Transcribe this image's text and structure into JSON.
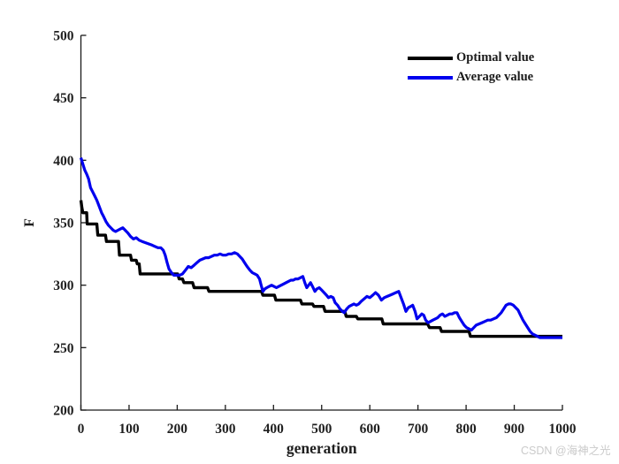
{
  "watermark": "CSDN @海神之光",
  "colors": {
    "axis": "#1a1a1a",
    "tick_label": "#1f1f1f",
    "background": "#ffffff",
    "watermark": "#cbcbcb"
  },
  "chart_data": {
    "type": "line",
    "title": "",
    "xlabel": "generation",
    "ylabel": "F",
    "xlim": [
      0,
      1000
    ],
    "ylim": [
      200,
      500
    ],
    "x_ticks": [
      0,
      100,
      200,
      300,
      400,
      500,
      600,
      700,
      800,
      900,
      1000
    ],
    "y_ticks": [
      200,
      250,
      300,
      350,
      400,
      450,
      500
    ],
    "grid": false,
    "legend_position": "top-right-inside",
    "legend_box": false,
    "series": [
      {
        "name": "Optimal value",
        "color": "#000000",
        "line_width": 3.4,
        "points": [
          [
            0,
            368
          ],
          [
            2,
            362
          ],
          [
            4,
            358
          ],
          [
            12,
            358
          ],
          [
            13,
            349
          ],
          [
            33,
            349
          ],
          [
            35,
            340
          ],
          [
            51,
            340
          ],
          [
            53,
            335
          ],
          [
            78,
            335
          ],
          [
            80,
            324
          ],
          [
            103,
            324
          ],
          [
            105,
            320
          ],
          [
            115,
            320
          ],
          [
            117,
            317
          ],
          [
            121,
            317
          ],
          [
            123,
            309
          ],
          [
            201,
            309
          ],
          [
            204,
            305
          ],
          [
            211,
            305
          ],
          [
            214,
            302
          ],
          [
            232,
            302
          ],
          [
            235,
            298
          ],
          [
            263,
            298
          ],
          [
            266,
            295
          ],
          [
            375,
            295
          ],
          [
            378,
            292
          ],
          [
            402,
            292
          ],
          [
            405,
            288
          ],
          [
            456,
            288
          ],
          [
            459,
            285
          ],
          [
            481,
            285
          ],
          [
            484,
            283
          ],
          [
            504,
            283
          ],
          [
            507,
            279
          ],
          [
            548,
            279
          ],
          [
            551,
            275
          ],
          [
            572,
            275
          ],
          [
            575,
            273
          ],
          [
            625,
            273
          ],
          [
            628,
            269
          ],
          [
            720,
            269
          ],
          [
            724,
            266
          ],
          [
            746,
            266
          ],
          [
            749,
            263
          ],
          [
            806,
            263
          ],
          [
            809,
            259
          ],
          [
            1000,
            259
          ]
        ]
      },
      {
        "name": "Average value",
        "color": "#0000ee",
        "line_width": 3.2,
        "points": [
          [
            0,
            402
          ],
          [
            4,
            397
          ],
          [
            8,
            392
          ],
          [
            12,
            389
          ],
          [
            16,
            385
          ],
          [
            20,
            378
          ],
          [
            24,
            375
          ],
          [
            28,
            372
          ],
          [
            33,
            368
          ],
          [
            38,
            363
          ],
          [
            43,
            358
          ],
          [
            47,
            355
          ],
          [
            52,
            351
          ],
          [
            57,
            348
          ],
          [
            62,
            346
          ],
          [
            67,
            344
          ],
          [
            72,
            343
          ],
          [
            77,
            344
          ],
          [
            82,
            345
          ],
          [
            87,
            346
          ],
          [
            92,
            344
          ],
          [
            97,
            342
          ],
          [
            103,
            339
          ],
          [
            109,
            337
          ],
          [
            115,
            338
          ],
          [
            121,
            336
          ],
          [
            127,
            335
          ],
          [
            134,
            334
          ],
          [
            141,
            333
          ],
          [
            148,
            332
          ],
          [
            154,
            331
          ],
          [
            160,
            330
          ],
          [
            166,
            330
          ],
          [
            171,
            328
          ],
          [
            175,
            324
          ],
          [
            179,
            318
          ],
          [
            183,
            313
          ],
          [
            188,
            310
          ],
          [
            193,
            308
          ],
          [
            199,
            308
          ],
          [
            205,
            308
          ],
          [
            211,
            309
          ],
          [
            217,
            312
          ],
          [
            223,
            315
          ],
          [
            229,
            314
          ],
          [
            235,
            316
          ],
          [
            241,
            318
          ],
          [
            247,
            320
          ],
          [
            253,
            321
          ],
          [
            259,
            322
          ],
          [
            265,
            322
          ],
          [
            271,
            323
          ],
          [
            277,
            324
          ],
          [
            283,
            324
          ],
          [
            289,
            325
          ],
          [
            295,
            324
          ],
          [
            301,
            324
          ],
          [
            307,
            325
          ],
          [
            313,
            325
          ],
          [
            319,
            326
          ],
          [
            325,
            325
          ],
          [
            330,
            323
          ],
          [
            335,
            321
          ],
          [
            340,
            318
          ],
          [
            345,
            315
          ],
          [
            351,
            312
          ],
          [
            356,
            310
          ],
          [
            361,
            309
          ],
          [
            366,
            308
          ],
          [
            371,
            305
          ],
          [
            375,
            299
          ],
          [
            378,
            295
          ],
          [
            382,
            297
          ],
          [
            386,
            298
          ],
          [
            391,
            299
          ],
          [
            396,
            300
          ],
          [
            401,
            299
          ],
          [
            406,
            298
          ],
          [
            411,
            299
          ],
          [
            416,
            300
          ],
          [
            421,
            301
          ],
          [
            426,
            302
          ],
          [
            431,
            303
          ],
          [
            436,
            304
          ],
          [
            441,
            304
          ],
          [
            446,
            305
          ],
          [
            451,
            305
          ],
          [
            456,
            306
          ],
          [
            461,
            307
          ],
          [
            465,
            302
          ],
          [
            469,
            298
          ],
          [
            473,
            300
          ],
          [
            477,
            302
          ],
          [
            481,
            299
          ],
          [
            486,
            295
          ],
          [
            490,
            297
          ],
          [
            495,
            298
          ],
          [
            500,
            296
          ],
          [
            505,
            294
          ],
          [
            510,
            292
          ],
          [
            514,
            290
          ],
          [
            519,
            291
          ],
          [
            524,
            290
          ],
          [
            528,
            286
          ],
          [
            533,
            284
          ],
          [
            538,
            281
          ],
          [
            543,
            279
          ],
          [
            547,
            278
          ],
          [
            552,
            281
          ],
          [
            557,
            283
          ],
          [
            562,
            284
          ],
          [
            567,
            285
          ],
          [
            572,
            284
          ],
          [
            577,
            285
          ],
          [
            582,
            287
          ],
          [
            588,
            289
          ],
          [
            594,
            291
          ],
          [
            600,
            290
          ],
          [
            606,
            292
          ],
          [
            612,
            294
          ],
          [
            618,
            292
          ],
          [
            624,
            288
          ],
          [
            630,
            290
          ],
          [
            636,
            291
          ],
          [
            642,
            292
          ],
          [
            648,
            293
          ],
          [
            654,
            294
          ],
          [
            660,
            295
          ],
          [
            665,
            290
          ],
          [
            670,
            285
          ],
          [
            675,
            279
          ],
          [
            680,
            282
          ],
          [
            685,
            283
          ],
          [
            689,
            284
          ],
          [
            694,
            279
          ],
          [
            698,
            273
          ],
          [
            703,
            275
          ],
          [
            708,
            277
          ],
          [
            712,
            276
          ],
          [
            716,
            272
          ],
          [
            721,
            270
          ],
          [
            726,
            271
          ],
          [
            731,
            272
          ],
          [
            736,
            273
          ],
          [
            741,
            274
          ],
          [
            746,
            276
          ],
          [
            751,
            277
          ],
          [
            756,
            275
          ],
          [
            761,
            276
          ],
          [
            766,
            277
          ],
          [
            771,
            277
          ],
          [
            776,
            278
          ],
          [
            781,
            278
          ],
          [
            786,
            274
          ],
          [
            791,
            271
          ],
          [
            796,
            268
          ],
          [
            801,
            266
          ],
          [
            806,
            265
          ],
          [
            811,
            264
          ],
          [
            816,
            266
          ],
          [
            821,
            268
          ],
          [
            827,
            269
          ],
          [
            833,
            270
          ],
          [
            839,
            271
          ],
          [
            845,
            272
          ],
          [
            851,
            272
          ],
          [
            857,
            273
          ],
          [
            863,
            274
          ],
          [
            868,
            276
          ],
          [
            873,
            278
          ],
          [
            878,
            281
          ],
          [
            883,
            284
          ],
          [
            888,
            285
          ],
          [
            893,
            285
          ],
          [
            898,
            284
          ],
          [
            903,
            282
          ],
          [
            908,
            280
          ],
          [
            913,
            276
          ],
          [
            918,
            272
          ],
          [
            923,
            269
          ],
          [
            928,
            266
          ],
          [
            933,
            263
          ],
          [
            938,
            261
          ],
          [
            943,
            260
          ],
          [
            948,
            259
          ],
          [
            953,
            258
          ],
          [
            960,
            258
          ],
          [
            970,
            258
          ],
          [
            980,
            258
          ],
          [
            990,
            258
          ],
          [
            1000,
            258
          ]
        ]
      }
    ]
  }
}
